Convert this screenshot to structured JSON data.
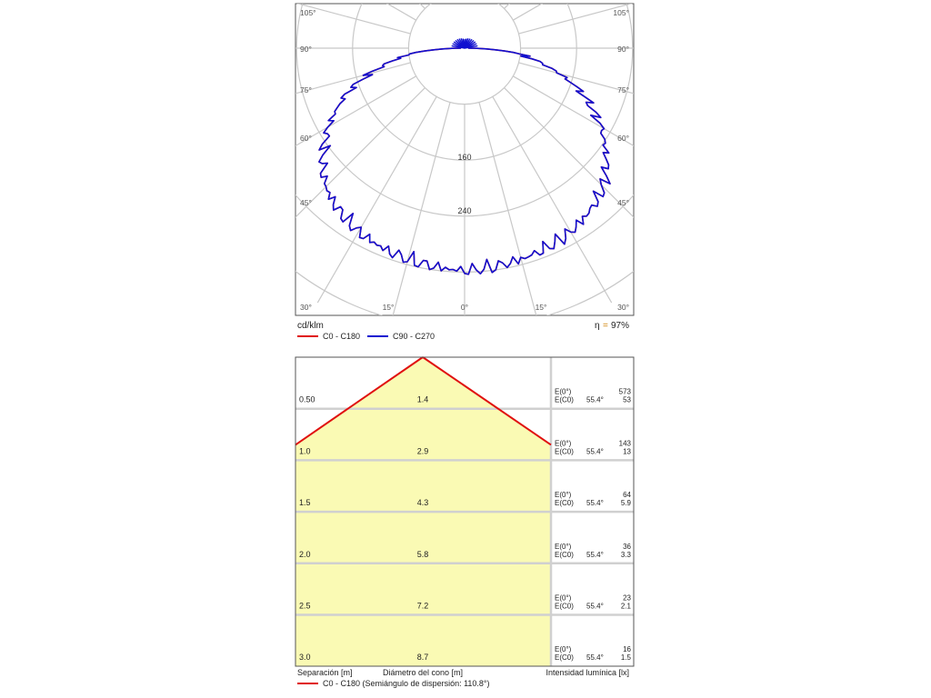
{
  "polar_chart": {
    "unit_label": "cd/klm",
    "efficiency_symbol": "η",
    "efficiency_sep": "=",
    "efficiency_value": "97%",
    "radial_ring_labels": [
      "160",
      "240"
    ],
    "angle_labels_left": [
      "105°",
      "90°",
      "75°",
      "60°",
      "45°",
      "30°"
    ],
    "angle_labels_right": [
      "105°",
      "90°",
      "75°",
      "60°",
      "45°",
      "30°"
    ],
    "angle_labels_bottom": [
      "15°",
      "0°",
      "15°"
    ],
    "legend": [
      {
        "label": "C0 - C180",
        "color": "#e01010"
      },
      {
        "label": "C90 - C270",
        "color": "#1010d0"
      }
    ]
  },
  "cone_diagram": {
    "rows": [
      {
        "distance": "0.50",
        "diameter": "1.4",
        "e0_label": "E(0°)",
        "ec0_label": "E(C0)",
        "half_angle": "55.4°",
        "e0_value": "573",
        "ec0_value": "53"
      },
      {
        "distance": "1.0",
        "diameter": "2.9",
        "e0_label": "E(0°)",
        "ec0_label": "E(C0)",
        "half_angle": "55.4°",
        "e0_value": "143",
        "ec0_value": "13"
      },
      {
        "distance": "1.5",
        "diameter": "4.3",
        "e0_label": "E(0°)",
        "ec0_label": "E(C0)",
        "half_angle": "55.4°",
        "e0_value": "64",
        "ec0_value": "5.9"
      },
      {
        "distance": "2.0",
        "diameter": "5.8",
        "e0_label": "E(0°)",
        "ec0_label": "E(C0)",
        "half_angle": "55.4°",
        "e0_value": "36",
        "ec0_value": "3.3"
      },
      {
        "distance": "2.5",
        "diameter": "7.2",
        "e0_label": "E(0°)",
        "ec0_label": "E(C0)",
        "half_angle": "55.4°",
        "e0_value": "23",
        "ec0_value": "2.1"
      },
      {
        "distance": "3.0",
        "diameter": "8.7",
        "e0_label": "E(0°)",
        "ec0_label": "E(C0)",
        "half_angle": "55.4°",
        "e0_value": "16",
        "ec0_value": "1.5"
      }
    ],
    "footer_separation": "Separación [m]",
    "footer_diameter": "Diámetro del cono [m]",
    "footer_intensity": "Intensidad lumínica [lx]",
    "legend_label": "C0 - C180 (Semiángulo de dispersión: 110.8°)",
    "legend_color": "#e01010",
    "fill_color": "#fafab4"
  },
  "chart_data": [
    {
      "type": "polar",
      "unit": "cd/klm",
      "efficiency": "97%",
      "radial_ticks": [
        160,
        240
      ],
      "angle_ticks_deg": [
        0,
        15,
        30,
        45,
        60,
        75,
        90,
        105
      ],
      "grid": true,
      "series": [
        {
          "name": "C90 - C270",
          "color": "#1010d0",
          "angles_deg": [
            0,
            10,
            20,
            30,
            40,
            45,
            50,
            60,
            70,
            75,
            80,
            85,
            90
          ],
          "values": [
            318,
            314,
            310,
            303,
            290,
            280,
            265,
            225,
            175,
            140,
            105,
            70,
            5
          ]
        },
        {
          "name": "C0 - C180",
          "color": "#e01010",
          "angles_deg": [
            0,
            10,
            20,
            30,
            40,
            45,
            50,
            60,
            70,
            75,
            80,
            85,
            90
          ],
          "values": [
            318,
            314,
            310,
            303,
            290,
            280,
            265,
            225,
            175,
            140,
            105,
            70,
            5
          ]
        }
      ]
    },
    {
      "type": "table",
      "title": "",
      "half_spread_angle_deg": 110.8,
      "columns": [
        "Separación [m]",
        "Diámetro del cono [m]",
        "E(0°) [lx]",
        "E(C0) [lx]"
      ],
      "distance_m": [
        0.5,
        1.0,
        1.5,
        2.0,
        2.5,
        3.0
      ],
      "cone_diameter_m": [
        1.4,
        2.9,
        4.3,
        5.8,
        7.2,
        8.7
      ],
      "e0_lx": [
        573,
        143,
        64,
        36,
        23,
        16
      ],
      "ec0_lx": [
        53,
        13,
        5.9,
        3.3,
        2.1,
        1.5
      ],
      "half_angle_deg": [
        55.4,
        55.4,
        55.4,
        55.4,
        55.4,
        55.4
      ]
    }
  ]
}
